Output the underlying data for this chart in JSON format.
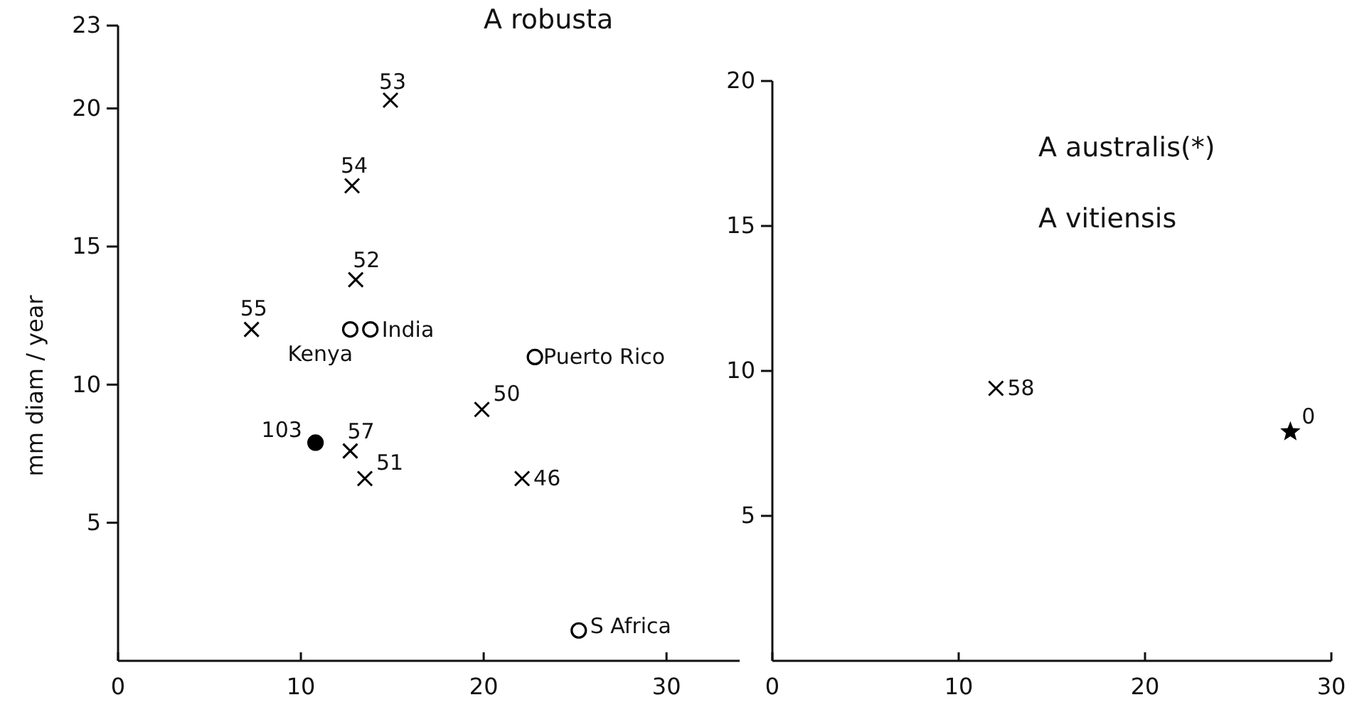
{
  "chart_data": [
    {
      "type": "scatter",
      "ylabel": "mm diam / year",
      "xlim": [
        0,
        34
      ],
      "ylim": [
        0,
        23
      ],
      "xticks": [
        0,
        10,
        20,
        30
      ],
      "yticks": [
        5,
        10,
        15,
        20,
        23
      ],
      "grid": false,
      "annotations": [
        "A robusta",
        {
          "text": "53",
          "x": 14.9,
          "y": 20.3
        },
        {
          "text": "54",
          "x": 12.8,
          "y": 17.2
        },
        {
          "text": "52",
          "x": 13.0,
          "y": 13.8
        },
        {
          "text": "55",
          "x": 7.3,
          "y": 12.0
        },
        {
          "text": "57",
          "x": 12.7,
          "y": 7.6
        },
        {
          "text": "51",
          "x": 13.5,
          "y": 6.6
        },
        {
          "text": "50",
          "x": 19.9,
          "y": 9.1
        },
        {
          "text": "46",
          "x": 22.1,
          "y": 6.6
        },
        {
          "text": "Kenya",
          "x": 12.7,
          "y": 12.0
        },
        {
          "text": "India",
          "x": 13.8,
          "y": 12.0
        },
        {
          "text": "Puerto Rico",
          "x": 22.8,
          "y": 11.0
        },
        {
          "text": "S Africa",
          "x": 25.2,
          "y": 1.1
        },
        {
          "text": "103",
          "x": 10.8,
          "y": 7.9
        }
      ],
      "series": [
        {
          "marker": "cross",
          "color": "#000000",
          "x": [
            14.9,
            12.8,
            13.0,
            7.3,
            12.7,
            13.5,
            19.9,
            22.1
          ],
          "values": [
            20.3,
            17.2,
            13.8,
            12.0,
            7.6,
            6.6,
            9.1,
            6.6
          ]
        },
        {
          "marker": "circle",
          "color": "#ffffff",
          "x": [
            12.7,
            13.8,
            22.8,
            25.2
          ],
          "values": [
            12.0,
            12.0,
            11.0,
            1.1
          ]
        },
        {
          "marker": "circle",
          "color": "#000000",
          "x": [
            10.8
          ],
          "values": [
            7.9
          ]
        }
      ]
    },
    {
      "type": "scatter",
      "xlim": [
        0,
        30
      ],
      "ylim": [
        0,
        20
      ],
      "xticks": [
        0,
        10,
        20,
        30
      ],
      "yticks": [
        5,
        10,
        15,
        20
      ],
      "grid": false,
      "annotations": [
        "A australis(*)",
        "A vitiensis",
        {
          "text": "58",
          "x": 12.0,
          "y": 9.4
        },
        {
          "text": "0",
          "x": 27.8,
          "y": 7.9
        }
      ],
      "series": [
        {
          "marker": "cross",
          "color": "#000000",
          "x": [
            12.0
          ],
          "values": [
            9.4
          ]
        },
        {
          "marker": "star",
          "color": "#000000",
          "x": [
            27.8
          ],
          "values": [
            7.9
          ]
        }
      ]
    }
  ]
}
